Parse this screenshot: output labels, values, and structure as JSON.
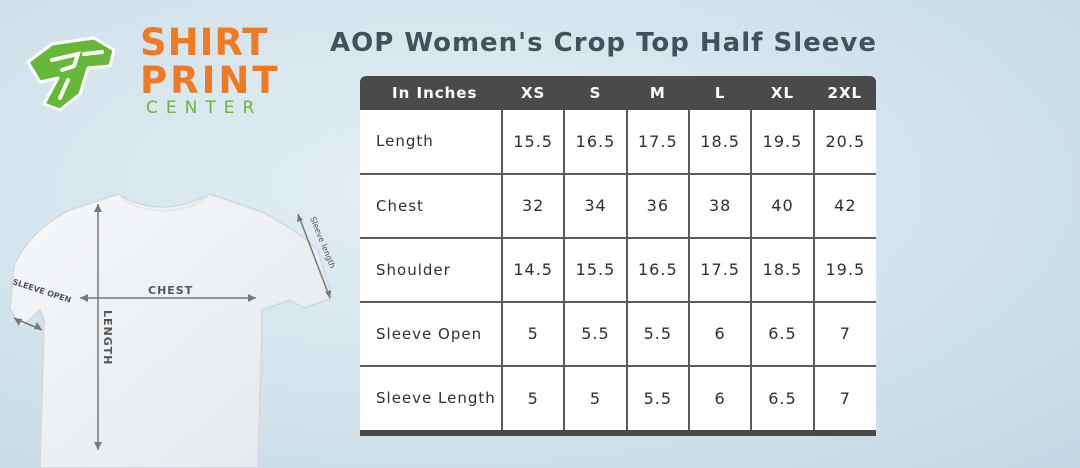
{
  "logo": {
    "line1": "SHIRT",
    "line2": "PRINT",
    "line3": "CENTER",
    "colors": {
      "orange": "#f07a23",
      "green": "#67b739"
    }
  },
  "title": "AOP Women's Crop Top Half Sleeve",
  "diagram": {
    "chest_label": "CHEST",
    "length_label": "LENGTH",
    "sleeve_open_label": "SLEEVE OPEN",
    "sleeve_length_label": "Sleeve length"
  },
  "size_table": {
    "header_label": "In Inches",
    "sizes": [
      "XS",
      "S",
      "M",
      "L",
      "XL",
      "2XL"
    ],
    "rows": [
      {
        "label": "Length",
        "values": [
          "15.5",
          "16.5",
          "17.5",
          "18.5",
          "19.5",
          "20.5"
        ]
      },
      {
        "label": "Chest",
        "values": [
          "32",
          "34",
          "36",
          "38",
          "40",
          "42"
        ]
      },
      {
        "label": "Shoulder",
        "values": [
          "14.5",
          "15.5",
          "16.5",
          "17.5",
          "18.5",
          "19.5"
        ]
      },
      {
        "label": "Sleeve Open",
        "values": [
          "5",
          "5.5",
          "5.5",
          "6",
          "6.5",
          "7"
        ]
      },
      {
        "label": "Sleeve Length",
        "values": [
          "5",
          "5",
          "5.5",
          "6",
          "6.5",
          "7"
        ]
      }
    ]
  }
}
